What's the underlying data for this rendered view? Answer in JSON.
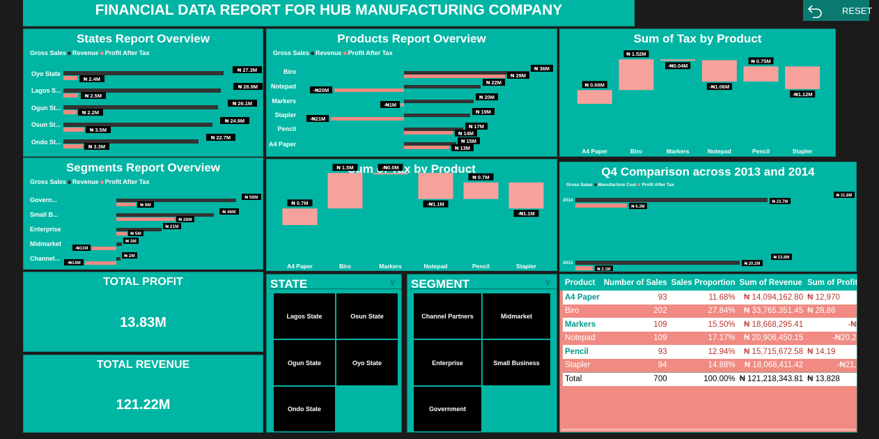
{
  "colors": {
    "panel": "#00b5a3",
    "dark_bar": "#333333",
    "red_bar": "#f08a82",
    "pink_bar": "#f7a19c",
    "bg": "#1b1b1b"
  },
  "header": {
    "title": "FINANCIAL DATA REPORT FOR HUB MANUFACTURING COMPANY",
    "reset_label": "RESET",
    "reset_icon": "undo-arrow-icon"
  },
  "states_report": {
    "title": "States Report Overview",
    "legend": [
      "Gross Sales",
      "Revenue",
      "Profit After Tax"
    ],
    "rows": [
      {
        "label": "Oyo State",
        "gross": "₦ 27.3M",
        "profit": "₦ 2.4M"
      },
      {
        "label": "Lagos S...",
        "gross": "₦ 26.9M",
        "profit": "₦ 2.5M"
      },
      {
        "label": "Ogun St...",
        "gross": "₦ 26.1M",
        "profit": "₦ 2.2M"
      },
      {
        "label": "Osun St...",
        "gross": "₦ 24.9M",
        "profit": "₦ 3.5M"
      },
      {
        "label": "Ondo St...",
        "gross": "₦ 22.7M",
        "profit": "₦ 3.3M"
      }
    ]
  },
  "products_report": {
    "title": "Products Report Overview",
    "legend": [
      "Gross Sales",
      "Revenue",
      "Profit After Tax"
    ],
    "labels": [
      "Biro",
      "Notepad",
      "Markers",
      "Stapler",
      "Pencil",
      "A4 Paper"
    ],
    "values": [
      "₦ 36M",
      "₦ 29M",
      "₦ 22M",
      "-₦20M",
      "₦ 20M",
      "-₦1M",
      "₦ 19M",
      "-₦21M",
      "₦ 17M",
      "₦ 14M",
      "₦ 15M",
      "₦ 13M"
    ]
  },
  "tax_by_product_top": {
    "title": "Sum of Tax by Product",
    "chart_data": {
      "type": "bar",
      "categories": [
        "A4 Paper",
        "Biro",
        "Markers",
        "Notepad",
        "Pencil",
        "Stapler"
      ],
      "values": [
        0.68,
        1.52,
        -0.04,
        -1.06,
        0.75,
        -1.12
      ],
      "labels": [
        "₦ 0.68M",
        "₦ 1.52M",
        "-₦0.04M",
        "-₦1.06M",
        "₦ 0.75M",
        "-₦1.12M"
      ]
    }
  },
  "segments_report": {
    "title": "Segments Report Overview",
    "legend": [
      "Gross Sales",
      "Revenue",
      "Profit After Tax"
    ],
    "rows": [
      {
        "label": "Govern...",
        "gross": "₦ 56M",
        "profit": "₦ 9M"
      },
      {
        "label": "Small B...",
        "gross": "₦ 46M",
        "profit": "₦ 26M"
      },
      {
        "label": "Enterprise",
        "gross": "₦ 21M",
        "profit": "₦ 5M"
      },
      {
        "label": "Midmarket",
        "gross": "₦ 3M",
        "profit": "-₦11M"
      },
      {
        "label": "Channel...",
        "gross": "₦ 2M",
        "profit": "-₦14M"
      }
    ]
  },
  "tax_by_product_mid": {
    "title": "Sum of Tax by Product",
    "chart_data": {
      "type": "bar",
      "categories": [
        "A4 Paper",
        "Biro",
        "Markers",
        "Notepad",
        "Pencil",
        "Stapler"
      ],
      "values": [
        0.7,
        1.5,
        0.0,
        -1.1,
        0.7,
        -1.1
      ],
      "labels": [
        "₦ 0.7M",
        "₦ 1.5M",
        "-₦0.0M",
        "-₦1.1M",
        "₦ 0.7M",
        "-₦1.1M"
      ]
    }
  },
  "q4_comparison": {
    "title": "Q4 Comparison across 2013 and 2014",
    "legend": [
      "Gross Sales",
      "Manufacture Cost",
      "Profit After Tax"
    ],
    "rows": [
      {
        "label": "2014",
        "values": [
          "₦ 31.8M",
          "₦ 23.7M",
          "₦ 6.3M"
        ]
      },
      {
        "label": "2013",
        "values": [
          "₦ 23.8M",
          "₦ 20.2M",
          "₦ 2.1M"
        ]
      }
    ]
  },
  "kpis": {
    "profit_title": "TOTAL PROFIT",
    "profit_value": "13.83M",
    "revenue_title": "TOTAL REVENUE",
    "revenue_value": "121.22M"
  },
  "state_slicer": {
    "title": "STATE",
    "items": [
      "Lagos State",
      "Osun State",
      "Ogun State",
      "Oyo State",
      "Ondo State"
    ]
  },
  "segment_slicer": {
    "title": "SEGMENT",
    "items": [
      "Channel Partners",
      "Midmarket",
      "Enterprise",
      "Small Business",
      "Government"
    ]
  },
  "table": {
    "headers": [
      "Product",
      "Number of Sales",
      "Sales Proportion",
      "Sum of Revenue",
      "Sum of Profit A"
    ],
    "rows": [
      [
        "A4 Paper",
        "93",
        "11.68%",
        "₦ 14,094,162.80",
        "₦ 12,970"
      ],
      [
        "Biro",
        "202",
        "27.84%",
        "₦ 33,765,351.45",
        "₦ 28,86"
      ],
      [
        "Markers",
        "109",
        "15.50%",
        "₦ 18,668,295.41",
        "-₦78"
      ],
      [
        "Notepad",
        "109",
        "17.17%",
        "₦ 20,906,450.15",
        "-₦20,224"
      ],
      [
        "Pencil",
        "93",
        "12.94%",
        "₦ 15,715,672.58",
        "₦ 14,19"
      ],
      [
        "Stapler",
        "94",
        "14.88%",
        "₦ 18,068,411.42",
        "-₦21,19"
      ]
    ],
    "total": [
      "Total",
      "700",
      "100.00%",
      "₦ 121,218,343.81",
      "₦ 13,828"
    ]
  }
}
